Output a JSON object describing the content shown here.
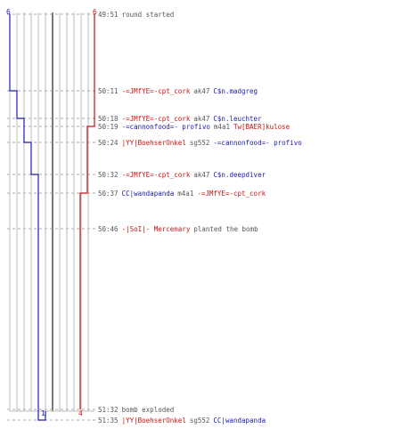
{
  "scores": {
    "blue_start": "6",
    "red_start": "6",
    "blue_end": "1",
    "red_end": "4"
  },
  "colors": {
    "red_team": "#d01010",
    "blue_team": "#1a1ab0",
    "timeline": "#bbbbbb",
    "center_line": "#777777",
    "dashed": "#aaaaaa"
  },
  "events": [
    {
      "time": "49:51",
      "parts": [
        {
          "text": "round started",
          "class": "dim"
        }
      ]
    },
    {
      "time": "50:11",
      "parts": [
        {
          "text": "-=JMfYE=-cpt_cork",
          "class": "red"
        },
        {
          "text": "ak47",
          "class": "dim"
        },
        {
          "text": "C$n.madgreg",
          "class": "blue"
        }
      ]
    },
    {
      "time": "50:18",
      "parts": [
        {
          "text": "-=JMfYE=-cpt_cork",
          "class": "red"
        },
        {
          "text": "ak47",
          "class": "dim"
        },
        {
          "text": "C$n.leuchter",
          "class": "blue"
        }
      ]
    },
    {
      "time": "50:19",
      "parts": [
        {
          "text": "-=cannonfood=- profivo",
          "class": "blue"
        },
        {
          "text": "m4a1",
          "class": "dim"
        },
        {
          "text": "Tw[BAER]kulose",
          "class": "red"
        }
      ]
    },
    {
      "time": "50:24",
      "parts": [
        {
          "text": "|YY|BoehserOnkel",
          "class": "red"
        },
        {
          "text": "sg552",
          "class": "dim"
        },
        {
          "text": "-=cannonfood=- profivo",
          "class": "blue"
        }
      ]
    },
    {
      "time": "50:32",
      "parts": [
        {
          "text": "-=JMfYE=-cpt_cork",
          "class": "red"
        },
        {
          "text": "ak47",
          "class": "dim"
        },
        {
          "text": "C$n.deepdiver",
          "class": "blue"
        }
      ]
    },
    {
      "time": "50:37",
      "parts": [
        {
          "text": "CC|wandapanda",
          "class": "blue"
        },
        {
          "text": "m4a1",
          "class": "dim"
        },
        {
          "text": "-=JMfYE=-cpt_cork",
          "class": "red"
        }
      ]
    },
    {
      "time": "50:46",
      "parts": [
        {
          "text": "-|SoI|- Mercenary",
          "class": "red"
        },
        {
          "text": "planted the bomb",
          "class": "dim"
        }
      ]
    },
    {
      "time": "51:32",
      "parts": [
        {
          "text": "bomb exploded",
          "class": "dim"
        }
      ]
    },
    {
      "time": "51:35",
      "parts": [
        {
          "text": "|YY|BoehserOnkel",
          "class": "red"
        },
        {
          "text": "sg552",
          "class": "dim"
        },
        {
          "text": "CC|wandapanda",
          "class": "blue"
        }
      ]
    }
  ]
}
